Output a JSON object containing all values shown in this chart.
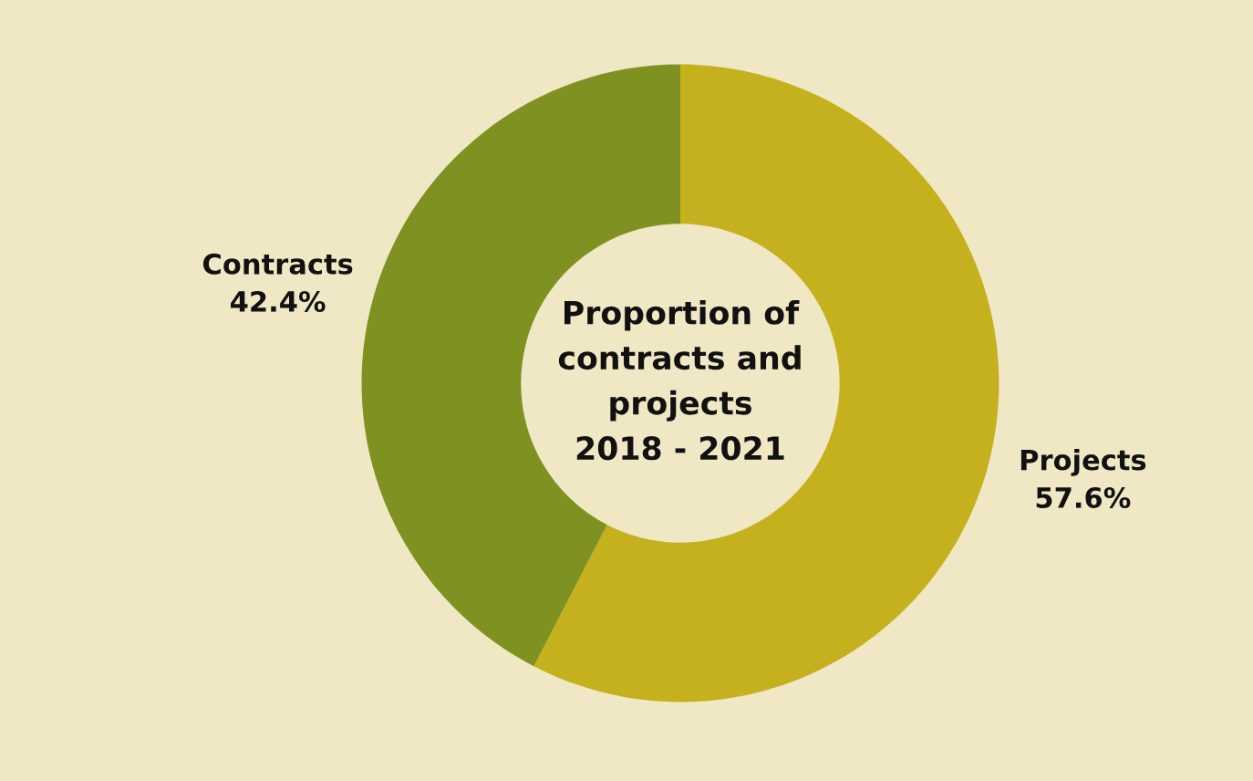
{
  "chart_data": {
    "type": "donut",
    "title": "Proportion of\ncontracts and\nprojects\n2018 - 2021",
    "categories": [
      "Projects",
      "Contracts"
    ],
    "values": [
      57.6,
      42.4
    ],
    "value_labels": [
      "57.6%",
      "42.4%"
    ],
    "colors": [
      "#c5b01e",
      "#7f9120"
    ],
    "legend": false
  }
}
